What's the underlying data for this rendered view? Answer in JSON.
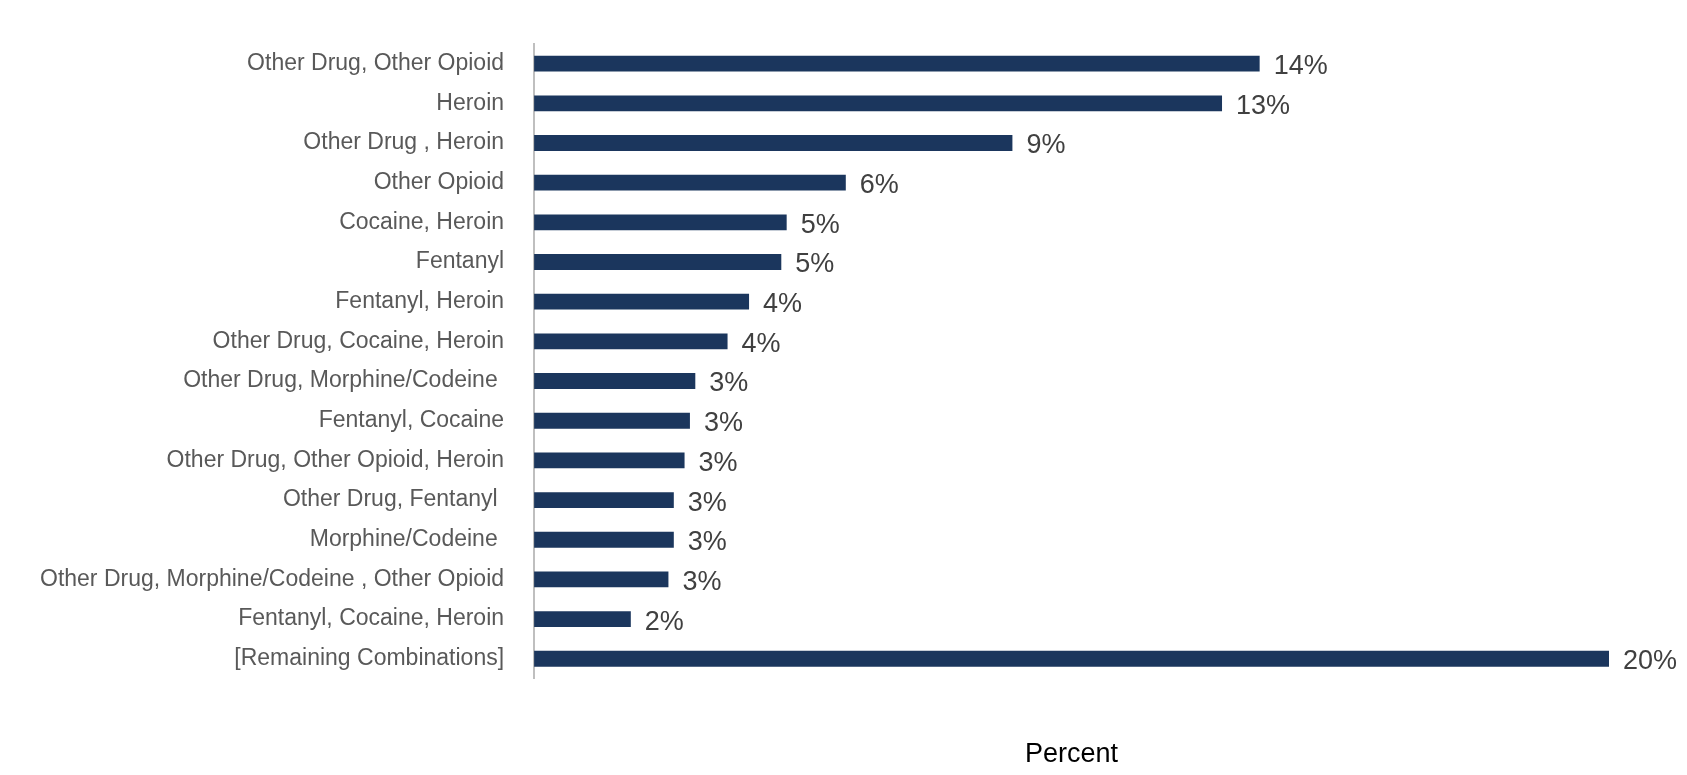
{
  "chart_data": {
    "type": "bar",
    "orientation": "horizontal",
    "xlabel": "Percent",
    "categories": [
      "Other Drug, Other Opioid",
      "Heroin",
      "Other Drug , Heroin",
      "Other Opioid",
      "Cocaine, Heroin",
      "Fentanyl",
      "Fentanyl, Heroin",
      "Other Drug, Cocaine, Heroin",
      "Other Drug, Morphine/Codeine ",
      "Fentanyl, Cocaine",
      "Other Drug, Other Opioid, Heroin",
      "Other Drug, Fentanyl ",
      "Morphine/Codeine ",
      "Other Drug, Morphine/Codeine , Other Opioid",
      "Fentanyl, Cocaine, Heroin",
      "[Remaining Combinations]"
    ],
    "values": [
      13.5,
      12.8,
      8.9,
      5.8,
      4.7,
      4.6,
      4.0,
      3.6,
      3.0,
      2.9,
      2.8,
      2.6,
      2.6,
      2.5,
      1.8,
      20.0
    ],
    "value_labels": [
      "14%",
      "13%",
      "9%",
      "6%",
      "5%",
      "5%",
      "4%",
      "4%",
      "3%",
      "3%",
      "3%",
      "3%",
      "3%",
      "3%",
      "2%",
      "20%"
    ],
    "color": "#1b365d",
    "xlim": [
      0,
      20
    ],
    "tick_labels": "y",
    "grid": false,
    "legend": false
  }
}
